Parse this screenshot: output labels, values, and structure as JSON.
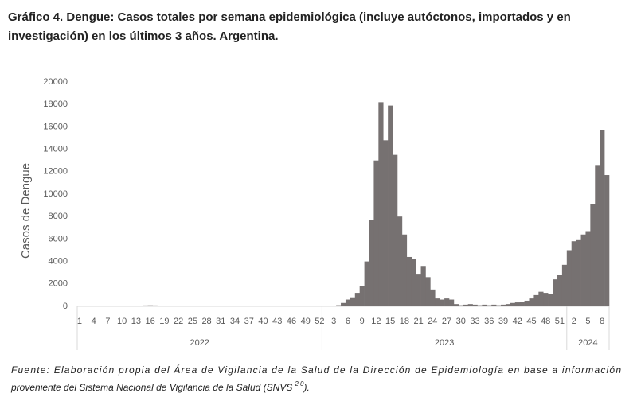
{
  "chart_data": {
    "type": "bar",
    "title": [
      "Gráfico 4. Dengue: Casos totales por semana epidemiológica (incluye autóctonos, importados y en",
      "investigación) en los últimos 3 años. Argentina."
    ],
    "y_label": "Casos de Dengue",
    "color": "#767171",
    "category_groups": [
      "2022",
      "2023",
      "2024"
    ],
    "categories": [
      [
        "1",
        null,
        null,
        "4",
        null,
        null,
        "7",
        null,
        null,
        "10",
        null,
        null,
        "13",
        null,
        null,
        "16",
        null,
        null,
        "19",
        null,
        null,
        "22",
        null,
        null,
        "25",
        null,
        null,
        "28",
        null,
        null,
        "31",
        null,
        null,
        "34",
        null,
        null,
        "37",
        null,
        null,
        "40",
        null,
        null,
        "43",
        null,
        null,
        "46",
        null,
        null,
        "49",
        null,
        null,
        "52"
      ],
      [
        null,
        null,
        "3",
        null,
        null,
        "6",
        null,
        null,
        "9",
        null,
        null,
        "12",
        null,
        null,
        "15",
        null,
        null,
        "18",
        null,
        null,
        "21",
        null,
        null,
        "24",
        null,
        null,
        "27",
        null,
        null,
        "30",
        null,
        null,
        "33",
        null,
        null,
        "36",
        null,
        null,
        "39",
        null,
        null,
        "42",
        null,
        null,
        "45",
        null,
        null,
        "48",
        null,
        null,
        "51",
        null
      ],
      [
        null,
        "2",
        null,
        null,
        "5",
        null,
        null,
        "8",
        null
      ]
    ],
    "values": [
      [
        20,
        20,
        20,
        20,
        20,
        20,
        20,
        30,
        30,
        30,
        30,
        40,
        60,
        70,
        80,
        90,
        80,
        70,
        60,
        40,
        30,
        30,
        30,
        20,
        20,
        20,
        20,
        20,
        20,
        20,
        20,
        20,
        20,
        20,
        20,
        20,
        20,
        20,
        20,
        20,
        20,
        20,
        20,
        20,
        20,
        20,
        20,
        20,
        20,
        20,
        20,
        20
      ],
      [
        20,
        30,
        50,
        100,
        300,
        600,
        800,
        1200,
        1800,
        4000,
        7700,
        13000,
        18200,
        14800,
        17900,
        13500,
        8000,
        6400,
        4400,
        4200,
        2900,
        3600,
        2600,
        1500,
        700,
        600,
        700,
        600,
        200,
        100,
        150,
        200,
        150,
        100,
        150,
        100,
        150,
        100,
        150,
        200,
        300,
        350,
        400,
        500,
        700,
        1000,
        1300,
        1200,
        1100,
        2400,
        2800,
        3700
      ],
      [
        5000,
        5800,
        5900,
        6400,
        6700,
        9100,
        12600,
        15700,
        11700
      ]
    ],
    "ylim": [
      0,
      20000
    ],
    "yticks": [
      0,
      2000,
      4000,
      6000,
      8000,
      10000,
      12000,
      14000,
      16000,
      18000,
      20000
    ],
    "source": [
      "Fuente: Elaboración propia del Área de Vigilancia de la Salud de la Dirección de Epidemiología en base a información",
      "proveniente del Sistema Nacional de Vigilancia de la Salud (SNVS"
    ],
    "source_sup": "2.0",
    "source_end": ")."
  }
}
